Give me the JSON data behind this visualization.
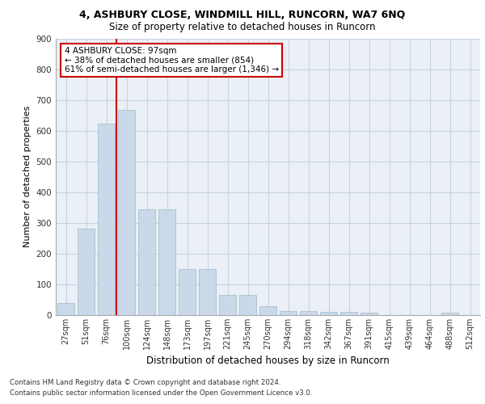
{
  "title_line1": "4, ASHBURY CLOSE, WINDMILL HILL, RUNCORN, WA7 6NQ",
  "title_line2": "Size of property relative to detached houses in Runcorn",
  "xlabel": "Distribution of detached houses by size in Runcorn",
  "ylabel": "Number of detached properties",
  "categories": [
    "27sqm",
    "51sqm",
    "76sqm",
    "100sqm",
    "124sqm",
    "148sqm",
    "173sqm",
    "197sqm",
    "221sqm",
    "245sqm",
    "270sqm",
    "294sqm",
    "318sqm",
    "342sqm",
    "367sqm",
    "391sqm",
    "415sqm",
    "439sqm",
    "464sqm",
    "488sqm",
    "512sqm"
  ],
  "values": [
    40,
    280,
    622,
    668,
    345,
    345,
    150,
    150,
    65,
    65,
    28,
    13,
    12,
    10,
    10,
    7,
    0,
    0,
    0,
    8,
    0
  ],
  "bar_color": "#c9d9ea",
  "bar_edge_color": "#aabfcf",
  "grid_color": "#c8d4e0",
  "background_color": "#eaf0f6",
  "annotation_text": "4 ASHBURY CLOSE: 97sqm\n← 38% of detached houses are smaller (854)\n61% of semi-detached houses are larger (1,346) →",
  "annotation_box_facecolor": "#ffffff",
  "annotation_box_edgecolor": "#cc0000",
  "vline_color": "#cc0000",
  "vline_x": 2.5,
  "ylim": [
    0,
    900
  ],
  "yticks": [
    0,
    100,
    200,
    300,
    400,
    500,
    600,
    700,
    800,
    900
  ],
  "footer_line1": "Contains HM Land Registry data © Crown copyright and database right 2024.",
  "footer_line2": "Contains public sector information licensed under the Open Government Licence v3.0."
}
